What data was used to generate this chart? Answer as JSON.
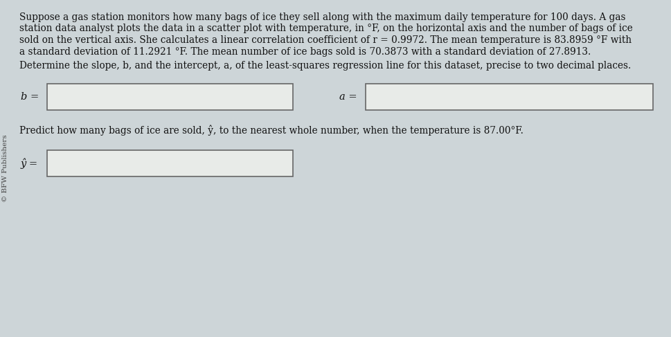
{
  "background_color": "#cdd5d8",
  "text_color": "#111111",
  "line1": "Suppose a gas station monitors how many bags of ice they sell along with the maximum daily temperature for 100 days. A gas",
  "line2": "station data analyst plots the data in a scatter plot with temperature, in °F, on the horizontal axis and the number of bags of ice",
  "line3": "sold on the vertical axis. She calculates a linear correlation coefficient of r = 0.9972. The mean temperature is 83.8959 °F with",
  "line4": "a standard deviation of 11.2921 °F. The mean number of ice bags sold is 70.3873 with a standard deviation of 27.8913.",
  "line5": "Determine the slope, b, and the intercept, a, of the least-squares regression line for this dataset, precise to two decimal places.",
  "paragraph3": "Predict how many bags of ice are sold, ŷ, to the nearest whole number, when the temperature is 87.00°F.",
  "label_b": "b =",
  "label_a": "a =",
  "label_yhat": "ŷ =",
  "sidebar_text": "© BFW Publishers",
  "box_fill": "#e8ebe8",
  "box_edge": "#666666",
  "font_size_main": 9.8,
  "font_size_label": 10.5,
  "font_size_sidebar": 7.5
}
